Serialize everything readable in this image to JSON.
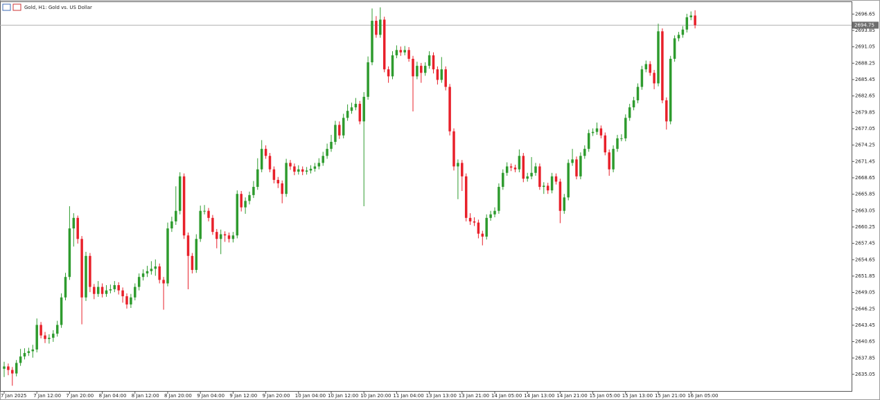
{
  "chart_data": {
    "type": "candlestick",
    "title": "Gold, H1:  Gold vs. US Dollar",
    "up_color": "#2e9b2e",
    "down_color": "#e8202a",
    "last_price": 2694.75,
    "ylim": [
      2632.2,
      2698.7
    ],
    "yticks": [
      2635.05,
      2637.85,
      2640.65,
      2643.45,
      2646.25,
      2649.05,
      2651.85,
      2654.65,
      2657.45,
      2660.25,
      2663.05,
      2665.85,
      2668.65,
      2671.45,
      2674.25,
      2677.05,
      2679.85,
      2682.65,
      2685.45,
      2688.25,
      2691.05,
      2693.85,
      2696.65
    ],
    "categories": [
      "7 Jan 2025",
      null,
      null,
      null,
      null,
      null,
      null,
      null,
      "7 Jan 12:00",
      null,
      null,
      null,
      null,
      null,
      null,
      null,
      "7 Jan 20:00",
      null,
      null,
      null,
      null,
      null,
      null,
      null,
      "8 Jan 04:00",
      null,
      null,
      null,
      null,
      null,
      null,
      null,
      "8 Jan 12:00",
      null,
      null,
      null,
      null,
      null,
      null,
      null,
      "8 Jan 20:00",
      null,
      null,
      null,
      null,
      null,
      null,
      null,
      "9 Jan 04:00",
      null,
      null,
      null,
      null,
      null,
      null,
      null,
      "9 Jan 12:00",
      null,
      null,
      null,
      null,
      null,
      null,
      null,
      "9 Jan 20:00",
      null,
      null,
      null,
      null,
      null,
      null,
      null,
      "10 Jan 04:00",
      null,
      null,
      null,
      null,
      null,
      null,
      null,
      "10 Jan 12:00",
      null,
      null,
      null,
      null,
      null,
      null,
      null,
      "10 Jan 20:00",
      null,
      null,
      null,
      null,
      null,
      null,
      null,
      "11 Jan 04:00",
      null,
      null,
      null,
      null,
      null,
      null,
      null,
      "13 Jan 13:00",
      null,
      null,
      null,
      null,
      null,
      null,
      null,
      "13 Jan 21:00",
      null,
      null,
      null,
      null,
      null,
      null,
      null,
      "14 Jan 05:00",
      null,
      null,
      null,
      null,
      null,
      null,
      null,
      "14 Jan 13:00",
      null,
      null,
      null,
      null,
      null,
      null,
      null,
      "14 Jan 21:00",
      null,
      null,
      null,
      null,
      null,
      null,
      null,
      "15 Jan 05:00",
      null,
      null,
      null,
      null,
      null,
      null,
      null,
      "15 Jan 13:00",
      null,
      null,
      null,
      null,
      null,
      null,
      null,
      "15 Jan 21:00",
      null,
      null,
      null,
      null,
      null,
      null,
      null,
      "16 Jan 05:00",
      null
    ],
    "candles": [
      [
        2636.0,
        2637.2,
        2634.6,
        2636.4
      ],
      [
        2636.4,
        2636.9,
        2634.9,
        2635.8
      ],
      [
        2635.8,
        2636.3,
        2633.1,
        2635.2
      ],
      [
        2635.2,
        2637.5,
        2634.7,
        2637.0
      ],
      [
        2637.0,
        2639.4,
        2636.5,
        2638.1
      ],
      [
        2638.1,
        2639.5,
        2637.6,
        2638.7
      ],
      [
        2638.7,
        2639.6,
        2638.2,
        2639.0
      ],
      [
        2639.0,
        2640.1,
        2637.9,
        2639.3
      ],
      [
        2639.3,
        2644.6,
        2638.8,
        2643.5
      ],
      [
        2643.5,
        2644.0,
        2641.2,
        2641.7
      ],
      [
        2641.7,
        2642.3,
        2640.4,
        2641.1
      ],
      [
        2641.1,
        2641.9,
        2640.3,
        2641.3
      ],
      [
        2641.3,
        2642.6,
        2640.6,
        2642.0
      ],
      [
        2642.0,
        2644.2,
        2641.5,
        2643.5
      ],
      [
        2643.5,
        2648.9,
        2643.0,
        2648.2
      ],
      [
        2648.2,
        2652.4,
        2647.7,
        2651.7
      ],
      [
        2651.7,
        2663.8,
        2651.2,
        2660.0
      ],
      [
        2660.0,
        2662.6,
        2656.9,
        2661.8
      ],
      [
        2661.8,
        2662.2,
        2657.4,
        2658.2
      ],
      [
        2658.2,
        2658.7,
        2643.6,
        2648.2
      ],
      [
        2648.2,
        2656.0,
        2647.6,
        2655.3
      ],
      [
        2655.3,
        2655.8,
        2649.1,
        2650.0
      ],
      [
        2650.0,
        2650.5,
        2647.9,
        2648.8
      ],
      [
        2648.8,
        2651.0,
        2648.3,
        2650.0
      ],
      [
        2650.0,
        2650.6,
        2648.2,
        2648.8
      ],
      [
        2648.8,
        2650.3,
        2648.3,
        2649.4
      ],
      [
        2649.4,
        2650.4,
        2648.9,
        2649.6
      ],
      [
        2649.6,
        2651.0,
        2649.1,
        2650.3
      ],
      [
        2650.3,
        2650.8,
        2648.7,
        2649.4
      ],
      [
        2649.4,
        2649.9,
        2647.3,
        2648.4
      ],
      [
        2648.4,
        2648.9,
        2646.3,
        2647.0
      ],
      [
        2647.0,
        2648.8,
        2646.4,
        2648.2
      ],
      [
        2648.2,
        2650.6,
        2647.7,
        2650.0
      ],
      [
        2650.0,
        2652.3,
        2649.4,
        2651.7
      ],
      [
        2651.7,
        2653.0,
        2651.1,
        2652.3
      ],
      [
        2652.3,
        2653.6,
        2651.7,
        2652.7
      ],
      [
        2652.7,
        2654.4,
        2652.1,
        2653.1
      ],
      [
        2653.1,
        2654.7,
        2651.9,
        2653.5
      ],
      [
        2653.5,
        2654.0,
        2650.6,
        2651.2
      ],
      [
        2651.2,
        2651.7,
        2646.1,
        2650.6
      ],
      [
        2650.6,
        2661.0,
        2650.1,
        2660.0
      ],
      [
        2660.0,
        2662.0,
        2659.4,
        2661.2
      ],
      [
        2661.2,
        2667.2,
        2660.6,
        2663.0
      ],
      [
        2663.0,
        2669.6,
        2662.4,
        2668.9
      ],
      [
        2668.9,
        2669.4,
        2658.2,
        2658.8
      ],
      [
        2658.8,
        2659.3,
        2649.6,
        2655.3
      ],
      [
        2655.3,
        2655.8,
        2652.3,
        2652.9
      ],
      [
        2652.9,
        2659.0,
        2652.4,
        2658.2
      ],
      [
        2658.2,
        2663.9,
        2657.7,
        2663.0
      ],
      [
        2663.0,
        2664.0,
        2662.4,
        2663.0
      ],
      [
        2663.0,
        2663.5,
        2661.2,
        2661.8
      ],
      [
        2661.8,
        2662.3,
        2658.9,
        2659.4
      ],
      [
        2659.4,
        2659.9,
        2656.6,
        2658.2
      ],
      [
        2658.2,
        2659.8,
        2655.6,
        2659.0
      ],
      [
        2659.0,
        2659.5,
        2657.7,
        2658.8
      ],
      [
        2658.8,
        2659.3,
        2657.6,
        2658.2
      ],
      [
        2658.2,
        2659.4,
        2657.6,
        2658.8
      ],
      [
        2658.8,
        2666.5,
        2658.3,
        2665.9
      ],
      [
        2665.9,
        2666.4,
        2662.9,
        2663.6
      ],
      [
        2663.6,
        2665.3,
        2662.5,
        2664.7
      ],
      [
        2664.7,
        2666.3,
        2664.1,
        2665.7
      ],
      [
        2665.7,
        2668.1,
        2665.2,
        2667.1
      ],
      [
        2667.1,
        2672.0,
        2666.6,
        2670.1
      ],
      [
        2670.1,
        2675.1,
        2669.6,
        2673.6
      ],
      [
        2673.6,
        2674.2,
        2671.9,
        2672.4
      ],
      [
        2672.4,
        2672.9,
        2669.6,
        2670.1
      ],
      [
        2670.1,
        2670.6,
        2667.7,
        2668.3
      ],
      [
        2668.3,
        2668.8,
        2666.9,
        2667.7
      ],
      [
        2667.7,
        2668.2,
        2664.3,
        2665.9
      ],
      [
        2665.9,
        2671.9,
        2665.4,
        2671.2
      ],
      [
        2671.2,
        2671.7,
        2670.0,
        2670.6
      ],
      [
        2670.6,
        2671.1,
        2669.1,
        2669.7
      ],
      [
        2669.7,
        2670.8,
        2669.2,
        2670.1
      ],
      [
        2670.1,
        2670.6,
        2669.1,
        2669.7
      ],
      [
        2669.7,
        2670.5,
        2669.2,
        2669.9
      ],
      [
        2669.9,
        2670.8,
        2669.4,
        2670.2
      ],
      [
        2670.2,
        2671.2,
        2669.7,
        2670.6
      ],
      [
        2670.6,
        2672.0,
        2670.1,
        2671.2
      ],
      [
        2671.2,
        2673.1,
        2670.7,
        2672.4
      ],
      [
        2672.4,
        2674.5,
        2671.9,
        2673.6
      ],
      [
        2673.6,
        2676.0,
        2673.1,
        2674.8
      ],
      [
        2674.8,
        2678.4,
        2674.3,
        2677.7
      ],
      [
        2677.7,
        2678.3,
        2675.3,
        2675.9
      ],
      [
        2675.9,
        2679.6,
        2675.4,
        2678.9
      ],
      [
        2678.9,
        2681.2,
        2678.4,
        2680.1
      ],
      [
        2680.1,
        2681.5,
        2679.6,
        2680.7
      ],
      [
        2680.7,
        2682.3,
        2680.2,
        2681.3
      ],
      [
        2681.3,
        2681.8,
        2677.8,
        2678.3
      ],
      [
        2678.3,
        2683.3,
        2663.8,
        2682.5
      ],
      [
        2682.5,
        2689.4,
        2682.0,
        2688.4
      ],
      [
        2688.4,
        2697.6,
        2687.9,
        2695.5
      ],
      [
        2695.5,
        2696.3,
        2692.6,
        2693.1
      ],
      [
        2693.1,
        2697.8,
        2692.6,
        2695.7
      ],
      [
        2695.7,
        2696.2,
        2686.7,
        2687.2
      ],
      [
        2687.2,
        2687.7,
        2684.9,
        2686.0
      ],
      [
        2686.0,
        2690.3,
        2685.5,
        2689.6
      ],
      [
        2689.6,
        2691.3,
        2689.1,
        2690.5
      ],
      [
        2690.5,
        2691.1,
        2689.5,
        2690.1
      ],
      [
        2690.1,
        2691.2,
        2689.6,
        2690.5
      ],
      [
        2690.5,
        2691.0,
        2688.5,
        2689.0
      ],
      [
        2689.0,
        2689.5,
        2680.0,
        2686.0
      ],
      [
        2686.0,
        2688.5,
        2685.5,
        2687.8
      ],
      [
        2687.8,
        2688.3,
        2684.9,
        2686.6
      ],
      [
        2686.6,
        2688.4,
        2686.1,
        2687.8
      ],
      [
        2687.8,
        2690.3,
        2687.3,
        2689.6
      ],
      [
        2689.6,
        2690.1,
        2686.5,
        2687.2
      ],
      [
        2687.2,
        2687.7,
        2684.6,
        2685.4
      ],
      [
        2685.4,
        2689.3,
        2684.9,
        2687.2
      ],
      [
        2687.2,
        2687.7,
        2683.6,
        2684.2
      ],
      [
        2684.2,
        2684.7,
        2675.9,
        2676.6
      ],
      [
        2676.6,
        2677.1,
        2669.9,
        2670.6
      ],
      [
        2670.6,
        2671.8,
        2665.0,
        2671.2
      ],
      [
        2671.2,
        2671.7,
        2666.4,
        2668.9
      ],
      [
        2668.9,
        2669.4,
        2661.2,
        2661.8
      ],
      [
        2661.8,
        2662.6,
        2660.6,
        2661.2
      ],
      [
        2661.2,
        2661.9,
        2660.4,
        2661.0
      ],
      [
        2661.0,
        2661.5,
        2658.3,
        2659.1
      ],
      [
        2659.1,
        2659.6,
        2657.1,
        2658.6
      ],
      [
        2658.6,
        2662.4,
        2658.1,
        2661.8
      ],
      [
        2661.8,
        2663.0,
        2661.3,
        2662.4
      ],
      [
        2662.4,
        2663.6,
        2661.9,
        2663.0
      ],
      [
        2663.0,
        2667.7,
        2662.5,
        2667.1
      ],
      [
        2667.1,
        2670.1,
        2666.6,
        2669.5
      ],
      [
        2669.5,
        2671.3,
        2669.0,
        2670.6
      ],
      [
        2670.6,
        2671.1,
        2669.8,
        2670.4
      ],
      [
        2670.4,
        2670.9,
        2669.6,
        2670.1
      ],
      [
        2670.1,
        2673.5,
        2669.6,
        2672.4
      ],
      [
        2672.4,
        2672.9,
        2667.9,
        2668.5
      ],
      [
        2668.5,
        2669.5,
        2668.0,
        2668.9
      ],
      [
        2668.9,
        2672.2,
        2668.4,
        2669.5
      ],
      [
        2669.5,
        2671.2,
        2669.0,
        2670.6
      ],
      [
        2670.6,
        2671.1,
        2666.6,
        2667.1
      ],
      [
        2667.1,
        2667.9,
        2665.9,
        2667.3
      ],
      [
        2667.3,
        2667.8,
        2665.9,
        2666.5
      ],
      [
        2666.5,
        2669.5,
        2666.0,
        2668.9
      ],
      [
        2668.9,
        2669.4,
        2667.5,
        2668.0
      ],
      [
        2668.0,
        2668.5,
        2660.9,
        2663.0
      ],
      [
        2663.0,
        2665.9,
        2662.5,
        2665.3
      ],
      [
        2665.3,
        2671.8,
        2664.8,
        2671.2
      ],
      [
        2671.2,
        2673.6,
        2670.7,
        2671.8
      ],
      [
        2671.8,
        2672.3,
        2668.4,
        2668.9
      ],
      [
        2668.9,
        2673.0,
        2668.4,
        2672.4
      ],
      [
        2672.4,
        2674.2,
        2671.9,
        2673.6
      ],
      [
        2673.6,
        2676.9,
        2673.1,
        2676.3
      ],
      [
        2676.3,
        2677.1,
        2675.8,
        2676.5
      ],
      [
        2676.5,
        2678.1,
        2676.0,
        2677.1
      ],
      [
        2677.1,
        2677.6,
        2675.4,
        2675.9
      ],
      [
        2675.9,
        2676.4,
        2672.5,
        2673.0
      ],
      [
        2673.0,
        2673.5,
        2669.0,
        2670.1
      ],
      [
        2670.1,
        2674.2,
        2669.6,
        2673.6
      ],
      [
        2673.6,
        2676.0,
        2673.1,
        2675.4
      ],
      [
        2675.4,
        2676.1,
        2674.9,
        2675.4
      ],
      [
        2675.4,
        2679.5,
        2674.9,
        2678.9
      ],
      [
        2678.9,
        2681.3,
        2678.4,
        2680.7
      ],
      [
        2680.7,
        2682.5,
        2680.2,
        2681.9
      ],
      [
        2681.9,
        2684.8,
        2681.4,
        2684.2
      ],
      [
        2684.2,
        2687.8,
        2683.7,
        2687.2
      ],
      [
        2687.2,
        2688.7,
        2686.7,
        2688.1
      ],
      [
        2688.1,
        2688.6,
        2686.1,
        2686.6
      ],
      [
        2686.6,
        2687.1,
        2683.8,
        2684.8
      ],
      [
        2684.8,
        2695.0,
        2684.3,
        2693.7
      ],
      [
        2693.7,
        2694.2,
        2681.4,
        2681.9
      ],
      [
        2681.9,
        2682.4,
        2676.9,
        2678.3
      ],
      [
        2678.3,
        2689.5,
        2677.8,
        2689.0
      ],
      [
        2689.0,
        2693.0,
        2688.5,
        2692.5
      ],
      [
        2692.5,
        2693.6,
        2692.0,
        2693.1
      ],
      [
        2693.1,
        2694.6,
        2692.6,
        2694.0
      ],
      [
        2694.0,
        2696.7,
        2693.5,
        2696.1
      ],
      [
        2696.1,
        2697.1,
        2695.6,
        2696.4
      ],
      [
        2696.4,
        2697.3,
        2694.2,
        2694.75
      ]
    ]
  }
}
